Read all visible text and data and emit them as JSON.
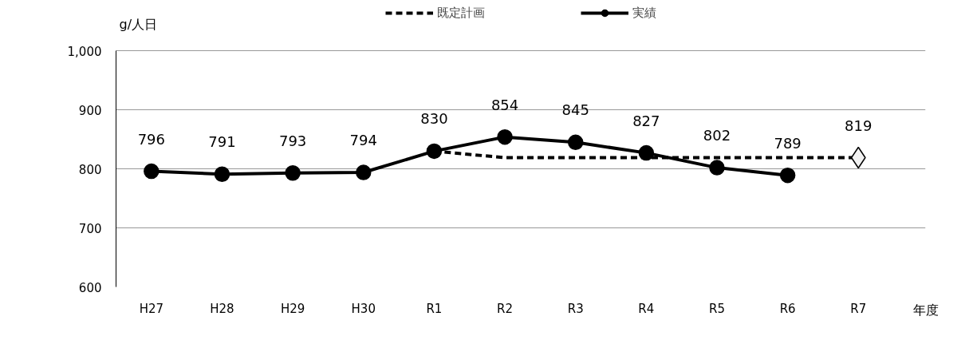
{
  "chart_data": {
    "type": "line",
    "ylabel": "g/人日",
    "xlabel": "年度",
    "categories": [
      "H27",
      "H28",
      "H29",
      "H30",
      "R1",
      "R2",
      "R3",
      "R4",
      "R5",
      "R6",
      "R7"
    ],
    "ylim": [
      600,
      1000
    ],
    "yticks": [
      600,
      700,
      800,
      900,
      {
        "value": 1000,
        "label": "1,000"
      }
    ],
    "grid": "y",
    "legend": "top",
    "series": [
      {
        "name": "既定計画",
        "color": "#000000",
        "line_style": "dashed",
        "marker": "none",
        "values": [
          null,
          null,
          null,
          null,
          830,
          819,
          819,
          819,
          819,
          819,
          819
        ]
      },
      {
        "name": "実績",
        "color": "#000000",
        "line_style": "solid",
        "marker": "circle",
        "values": [
          796,
          791,
          793,
          794,
          830,
          854,
          845,
          827,
          802,
          789,
          null
        ],
        "value_labels": [
          "796",
          "791",
          "793",
          "794",
          "830",
          "854",
          "845",
          "827",
          "802",
          "789",
          null
        ]
      },
      {
        "type": "scatter",
        "color": "#000000",
        "marker": "diamond",
        "values": [
          null,
          null,
          null,
          null,
          null,
          null,
          null,
          null,
          null,
          null,
          819
        ],
        "value_labels": [
          null,
          null,
          null,
          null,
          null,
          null,
          null,
          null,
          null,
          null,
          "819"
        ]
      }
    ]
  }
}
